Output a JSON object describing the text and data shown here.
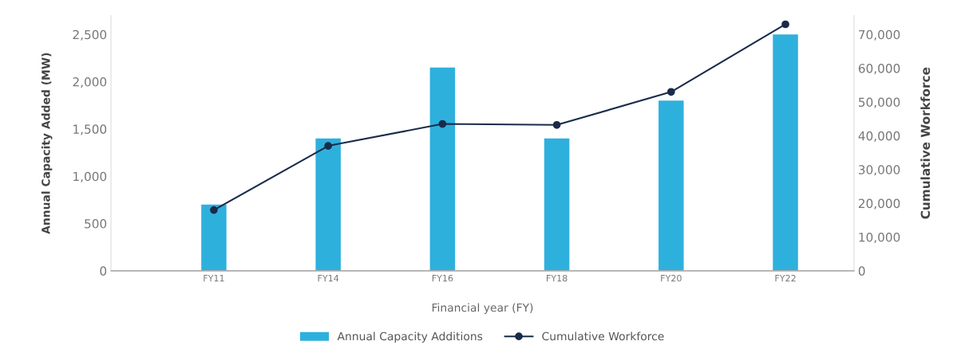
{
  "chart_data": {
    "type": "bar",
    "xlabel": "Financial year (FY)",
    "ylabel": "Annual Capacity Added (MW)",
    "y2label": "Cumulative Workforce",
    "categories": [
      "FY11",
      "FY14",
      "FY16",
      "FY18",
      "FY20",
      "FY22"
    ],
    "series": [
      {
        "name": "Annual Capacity Additions",
        "color": "#2eb0dd",
        "values": [
          700,
          1400,
          2150,
          1400,
          1800,
          2500
        ]
      },
      {
        "name": "Cumulative Workforce",
        "type": "line",
        "axis": "y2",
        "color": "#1a2b4a",
        "marker": "circle",
        "values": [
          18000,
          37000,
          43500,
          43200,
          53000,
          73000
        ]
      }
    ],
    "ylim": [
      0,
      2700
    ],
    "yticks": [
      {
        "value": 0,
        "label": "0"
      },
      {
        "value": 500,
        "label": "500"
      },
      {
        "value": 1000,
        "label": "1,000"
      },
      {
        "value": 1500,
        "label": "1,500"
      },
      {
        "value": 2000,
        "label": "2,000"
      },
      {
        "value": 2500,
        "label": "2,500"
      }
    ],
    "y2lim": [
      0,
      75600
    ],
    "y2ticks": [
      {
        "value": 0,
        "label": "0"
      },
      {
        "value": 10000,
        "label": "10,000"
      },
      {
        "value": 20000,
        "label": "20,000"
      },
      {
        "value": 30000,
        "label": "30,000"
      },
      {
        "value": 40000,
        "label": "40,000"
      },
      {
        "value": 50000,
        "label": "50,000"
      },
      {
        "value": 60000,
        "label": "60,000"
      },
      {
        "value": 70000,
        "label": "70,000"
      }
    ],
    "grid": false,
    "legend": "bottom"
  }
}
